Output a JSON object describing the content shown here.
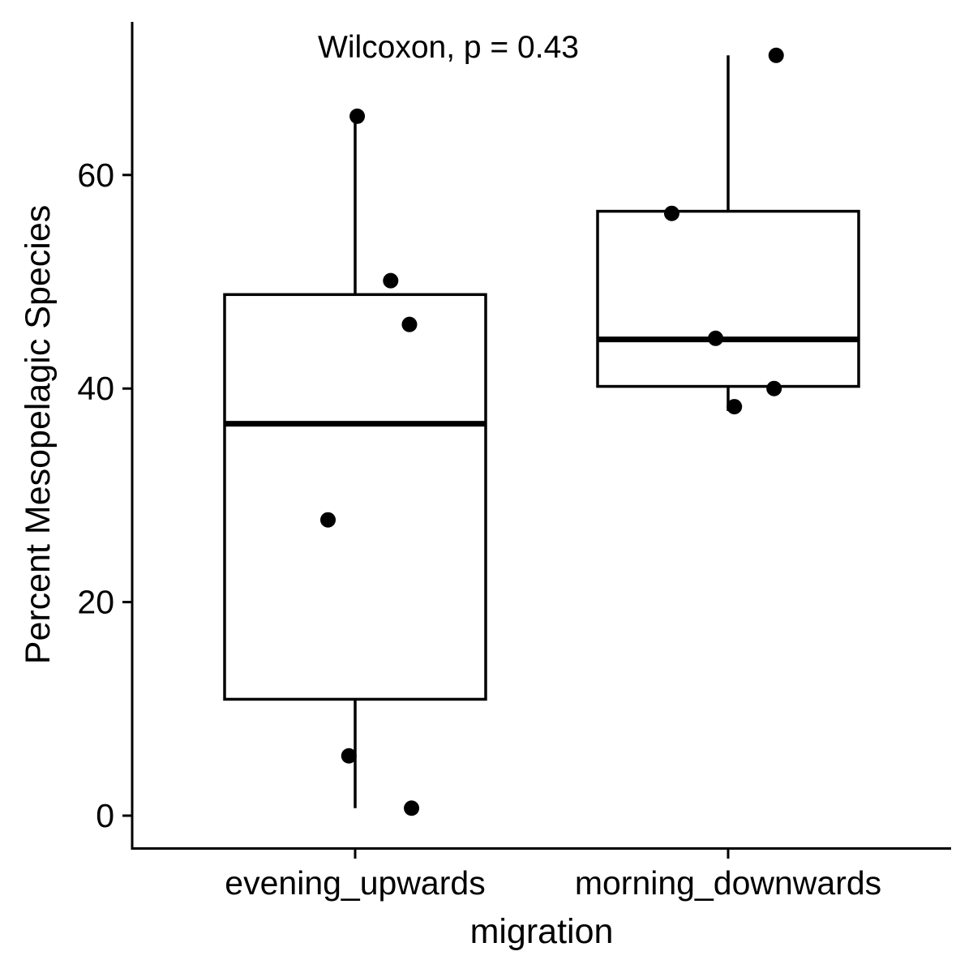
{
  "chart_data": {
    "type": "box",
    "xlabel": "migration",
    "ylabel": "Percent Mesopelagic Species",
    "annotation": "Wilcoxon, p = 0.43",
    "categories": [
      "evening_upwards",
      "morning_downwards"
    ],
    "ylim": [
      -3,
      74
    ],
    "yticks": [
      0,
      20,
      40,
      60
    ],
    "grid": false,
    "legend": "none",
    "boxes": [
      {
        "category": "evening_upwards",
        "whisker_low": 0.7,
        "q1": 10.9,
        "median": 36.7,
        "q3": 48.8,
        "whisker_high": 65.5
      },
      {
        "category": "morning_downwards",
        "whisker_low": 37.9,
        "q1": 40.2,
        "median": 44.6,
        "q3": 56.6,
        "whisker_high": 71.2
      }
    ],
    "points": [
      {
        "category": "evening_upwards",
        "y": 65.5,
        "jitter": 0.01
      },
      {
        "category": "evening_upwards",
        "y": 50.1,
        "jitter": 0.17
      },
      {
        "category": "evening_upwards",
        "y": 46.0,
        "jitter": 0.26
      },
      {
        "category": "evening_upwards",
        "y": 27.7,
        "jitter": -0.13
      },
      {
        "category": "evening_upwards",
        "y": 5.6,
        "jitter": -0.03
      },
      {
        "category": "evening_upwards",
        "y": 0.7,
        "jitter": 0.27
      },
      {
        "category": "morning_downwards",
        "y": 71.2,
        "jitter": 0.23
      },
      {
        "category": "morning_downwards",
        "y": 56.4,
        "jitter": -0.27
      },
      {
        "category": "morning_downwards",
        "y": 44.7,
        "jitter": -0.06
      },
      {
        "category": "morning_downwards",
        "y": 40.0,
        "jitter": 0.22
      },
      {
        "category": "morning_downwards",
        "y": 38.3,
        "jitter": 0.03
      }
    ]
  }
}
